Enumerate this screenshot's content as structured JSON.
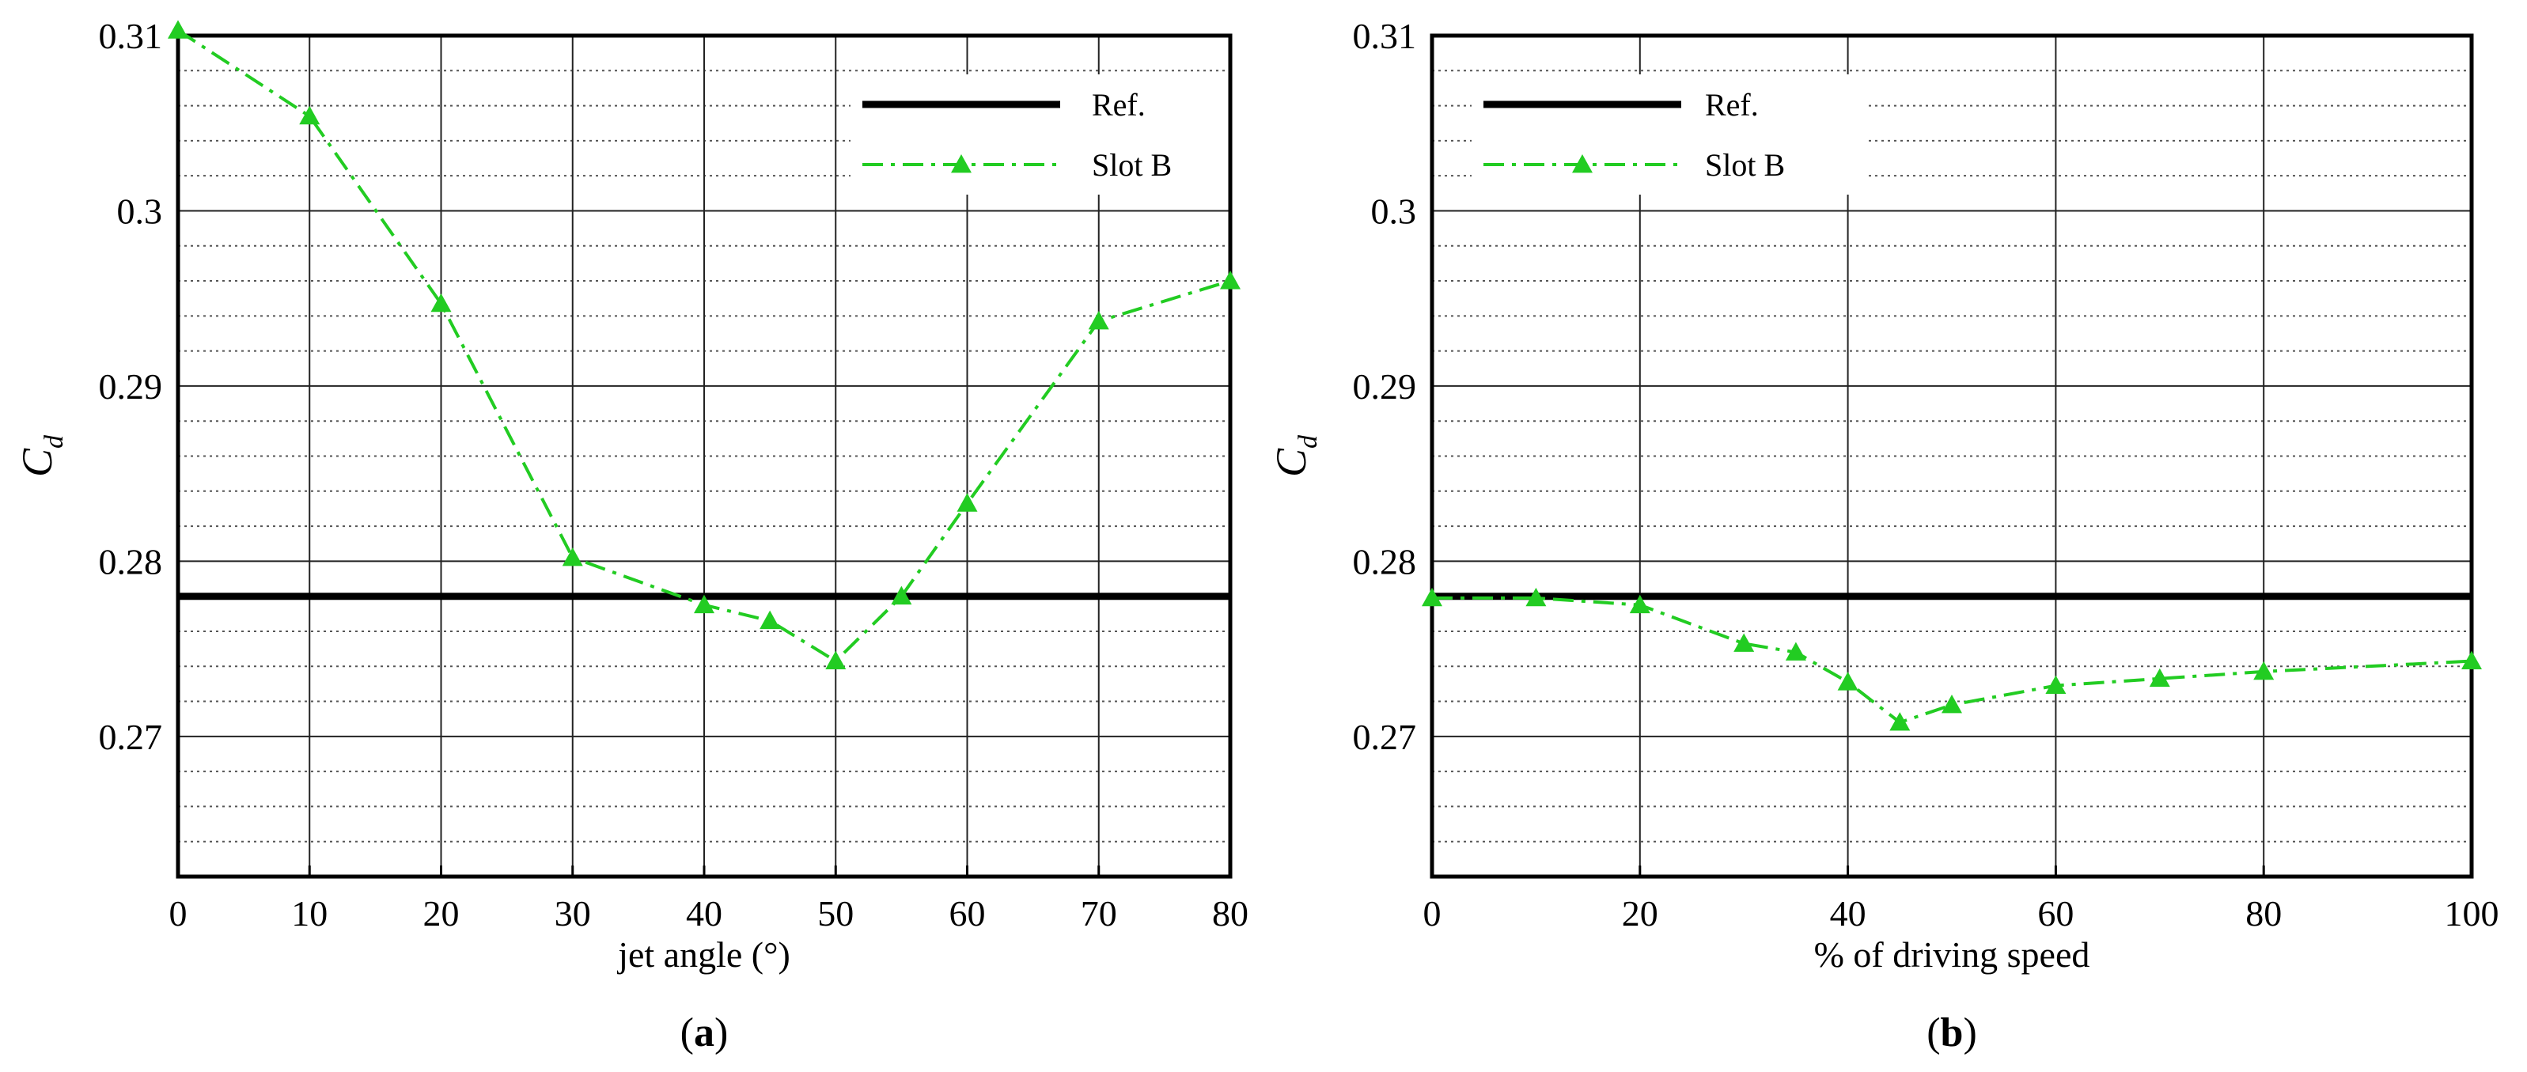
{
  "chart_data": [
    {
      "type": "line",
      "panel": "a",
      "panel_label": "a",
      "xlabel": "jet angle (°)",
      "ylabel": "C",
      "ylabel_subscript": "d",
      "xlim": [
        0,
        80
      ],
      "ylim": [
        0.262,
        0.31
      ],
      "xticks": [
        0,
        10,
        20,
        30,
        40,
        50,
        60,
        70,
        80
      ],
      "yticks": [
        0.27,
        0.28,
        0.29,
        0.3,
        0.31
      ],
      "xtick_labels": [
        "0",
        "10",
        "20",
        "30",
        "40",
        "50",
        "60",
        "70",
        "80"
      ],
      "ytick_labels": [
        "0.27",
        "0.28",
        "0.29",
        "0.3",
        "0.31"
      ],
      "grid": true,
      "legend_position": "top-right",
      "series": [
        {
          "name": "Ref.",
          "style": "solid",
          "color": "#000000",
          "x": [
            0,
            80
          ],
          "y": [
            0.278,
            0.278
          ]
        },
        {
          "name": "Slot B",
          "style": "dash-dot",
          "marker": "triangle",
          "color": "#22cc22",
          "x": [
            0,
            10,
            20,
            30,
            40,
            45,
            50,
            55,
            60,
            70,
            80
          ],
          "y": [
            0.3103,
            0.3054,
            0.2947,
            0.2802,
            0.2775,
            0.2766,
            0.2743,
            0.278,
            0.2833,
            0.2937,
            0.296
          ]
        }
      ]
    },
    {
      "type": "line",
      "panel": "b",
      "panel_label": "b",
      "xlabel": "% of driving speed",
      "ylabel": "C",
      "ylabel_subscript": "d",
      "xlim": [
        0,
        100
      ],
      "ylim": [
        0.262,
        0.31
      ],
      "xticks": [
        0,
        20,
        40,
        60,
        80,
        100
      ],
      "yticks": [
        0.27,
        0.28,
        0.29,
        0.3,
        0.31
      ],
      "xtick_labels": [
        "0",
        "20",
        "40",
        "60",
        "80",
        "100"
      ],
      "ytick_labels": [
        "0.27",
        "0.28",
        "0.29",
        "0.3",
        "0.31"
      ],
      "grid": true,
      "legend_position": "top-left",
      "series": [
        {
          "name": "Ref.",
          "style": "solid",
          "color": "#000000",
          "x": [
            0,
            100
          ],
          "y": [
            0.278,
            0.278
          ]
        },
        {
          "name": "Slot B",
          "style": "dash-dot",
          "marker": "triangle",
          "color": "#22cc22",
          "x": [
            0,
            10,
            20,
            30,
            35,
            40,
            45,
            50,
            60,
            70,
            80,
            100
          ],
          "y": [
            0.2779,
            0.2779,
            0.2775,
            0.2753,
            0.2748,
            0.2731,
            0.2708,
            0.2718,
            0.2729,
            0.2733,
            0.2737,
            0.2743
          ]
        }
      ]
    }
  ]
}
